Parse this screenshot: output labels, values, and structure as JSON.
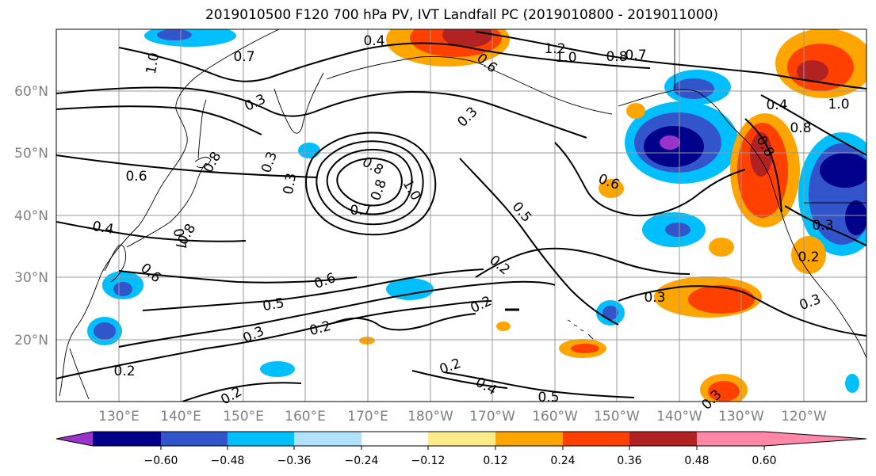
{
  "title": "2019010500 F120 700 hPa PV, IVT Landfall PC (2019010800 - 2019011000)",
  "lat_labels": [
    "60°N",
    "50°N",
    "40°N",
    "30°N",
    "20°N"
  ],
  "lon_labels": [
    "130°E",
    "140°E",
    "150°E",
    "160°E",
    "170°E",
    "180°W",
    "170°W",
    "160°W",
    "150°W",
    "140°W",
    "130°W",
    "120°W"
  ],
  "colorbar": {
    "colors": [
      "#9933cc",
      "#00008b",
      "#3355cc",
      "#00bfff",
      "#b0e2ff",
      "#ffffff",
      "#ffeb88",
      "#ffa500",
      "#ff4000",
      "#b22222",
      "#ff88aa"
    ],
    "tick_labels": [
      "−0.60",
      "−0.48",
      "−0.36",
      "−0.24",
      "−0.12",
      "0.12",
      "0.24",
      "0.36",
      "0.48",
      "0.60"
    ]
  },
  "contour_labels": [
    "0.4",
    "1.2",
    "1.0",
    "0.8",
    "0.7",
    "0.6",
    "0.8",
    "1.0",
    "0.7",
    "0.3",
    "0.3",
    "0.8",
    "0.6",
    "0.3",
    "0.8",
    "1.0",
    "0.7",
    "0.6",
    "0.5",
    "0.4",
    "0.7",
    "0.8",
    "0.6",
    "0.3",
    "0.2",
    "0.6",
    "0.5",
    "0.3",
    "0.2",
    "0.2",
    "0.2",
    "0.2",
    "0.4",
    "0.5",
    "0.3",
    "0.3",
    "0.3",
    "0.2",
    "1.0",
    "0.8",
    "0.4",
    "0.8",
    "0.3",
    "0.2"
  ]
}
